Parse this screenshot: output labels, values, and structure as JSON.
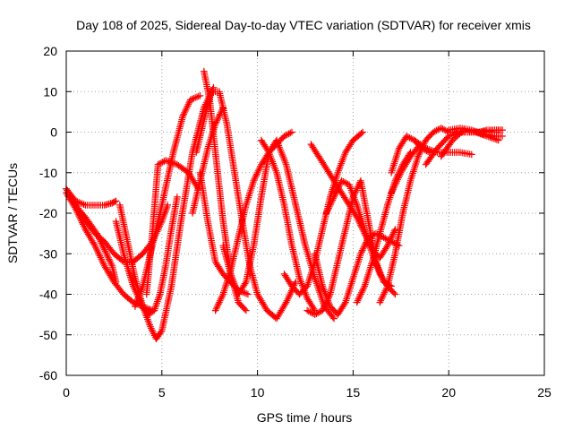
{
  "chart_data": {
    "type": "scatter",
    "title": "Day 108 of 2025, Sidereal Day-to-day VTEC variation (SDTVAR) for receiver xmis",
    "xlabel": "GPS time / hours",
    "ylabel": "SDTVAR / TECUs",
    "xlim": [
      0,
      25
    ],
    "ylim": [
      -60,
      20
    ],
    "xticks": [
      0,
      5,
      10,
      15,
      20,
      25
    ],
    "yticks": [
      -60,
      -50,
      -40,
      -30,
      -20,
      -10,
      0,
      10,
      20
    ],
    "grid": true,
    "marker": "plus",
    "color": "#ff0000",
    "series": [
      {
        "x": [
          0.0,
          0.5,
          1.0,
          1.5,
          2.0,
          2.4,
          2.6
        ],
        "y": [
          -14,
          -17,
          -18,
          -18,
          -18,
          -17.5,
          -17
        ]
      },
      {
        "x": [
          0.0,
          0.5,
          1.0,
          1.5,
          2.0,
          2.5,
          3.0,
          3.5,
          4.0,
          4.5,
          5.0,
          5.3
        ],
        "y": [
          -14,
          -18,
          -22,
          -25,
          -27,
          -30,
          -32,
          -32,
          -30,
          -27,
          -22,
          -18
        ]
      },
      {
        "x": [
          0.0,
          0.5,
          1.0,
          1.5,
          2.0,
          2.5,
          3.0,
          3.5,
          4.0,
          4.5
        ],
        "y": [
          -15,
          -19,
          -24,
          -28,
          -33,
          -37,
          -40,
          -42,
          -43,
          -44
        ]
      },
      {
        "x": [
          0.3,
          1.0,
          1.6,
          2.0,
          2.4,
          2.6
        ],
        "y": [
          -17,
          -21,
          -25,
          -29,
          -33,
          -37
        ]
      },
      {
        "x": [
          2.8,
          3.2,
          3.6,
          4.0,
          4.4,
          4.7,
          5.0,
          5.5,
          6.0,
          6.6,
          7.2,
          7.7
        ],
        "y": [
          -18,
          -27,
          -36,
          -43,
          -48,
          -51,
          -49,
          -38,
          -22,
          -5,
          6,
          11
        ]
      },
      {
        "x": [
          2.6,
          3.0,
          3.5,
          4.0,
          4.3,
          4.6,
          4.9,
          5.2,
          5.5,
          5.8
        ],
        "y": [
          -22,
          -30,
          -38,
          -43,
          -45,
          -44,
          -40,
          -33,
          -24,
          -16
        ]
      },
      {
        "x": [
          3.6,
          4.0,
          4.4,
          5.0,
          5.6,
          6.1,
          6.5,
          7.0
        ],
        "y": [
          -43,
          -38,
          -30,
          -18,
          -5,
          4,
          8,
          9
        ]
      },
      {
        "x": [
          4.2,
          4.5,
          4.8,
          5.2,
          5.8,
          6.4,
          6.9
        ],
        "y": [
          -40,
          -25,
          -8,
          -7,
          -8,
          -10,
          -14
        ]
      },
      {
        "x": [
          6.6,
          7.0,
          7.4,
          7.8,
          8.2
        ],
        "y": [
          -20,
          -12,
          -4,
          2,
          6
        ]
      },
      {
        "x": [
          6.8,
          7.3,
          7.6,
          8.0,
          8.4,
          8.8,
          9.2,
          9.6,
          10.0,
          10.5,
          11.0,
          11.5,
          12.0
        ],
        "y": [
          -5,
          5,
          10,
          10,
          2,
          -10,
          -22,
          -33,
          -40,
          -44,
          -46,
          -42,
          -37
        ]
      },
      {
        "x": [
          7.2,
          7.5,
          7.8,
          8.2,
          8.6,
          9.0,
          9.4
        ],
        "y": [
          15,
          8,
          -5,
          -22,
          -35,
          -42,
          -44
        ]
      },
      {
        "x": [
          7.0,
          7.4,
          7.8,
          8.2,
          8.6,
          9.0,
          9.5
        ],
        "y": [
          -10,
          -22,
          -32,
          -35,
          -37,
          -39,
          -40
        ]
      },
      {
        "x": [
          7.8,
          8.2,
          8.6,
          9.0,
          9.4,
          9.8,
          10.2,
          10.6,
          11.0,
          11.4,
          11.8
        ],
        "y": [
          -44,
          -40,
          -34,
          -26,
          -18,
          -12,
          -8,
          -5,
          -3,
          -1,
          0
        ]
      },
      {
        "x": [
          8.2,
          8.6,
          9.0,
          9.4,
          9.8,
          10.2,
          10.6,
          11.0,
          11.5,
          12.0,
          12.5,
          13.0,
          13.5,
          14.0
        ],
        "y": [
          -28,
          -35,
          -40,
          -37,
          -28,
          -16,
          -5,
          -2,
          -8,
          -18,
          -28,
          -36,
          -43,
          -46
        ]
      },
      {
        "x": [
          10.2,
          10.6,
          11.0,
          11.4,
          11.8,
          12.2,
          12.6,
          13.0
        ],
        "y": [
          -2,
          -5,
          -10,
          -18,
          -28,
          -36,
          -41,
          -44
        ]
      },
      {
        "x": [
          11.4,
          11.8,
          12.2,
          12.6,
          13.0,
          13.4,
          13.8,
          14.2,
          14.6,
          15.0,
          15.5
        ],
        "y": [
          -35,
          -38,
          -40,
          -38,
          -32,
          -24,
          -16,
          -10,
          -5,
          -2,
          0
        ]
      },
      {
        "x": [
          12.8,
          13.2,
          13.6,
          14.0,
          14.4,
          14.8,
          15.2,
          15.6,
          16.0,
          16.4,
          16.8,
          17.2
        ],
        "y": [
          -3,
          -6,
          -9,
          -12,
          -15,
          -18,
          -21,
          -25,
          -29,
          -31,
          -28,
          -24
        ]
      },
      {
        "x": [
          13.0,
          13.4,
          13.8,
          14.2,
          14.6,
          15.0,
          15.4,
          15.8,
          16.2,
          16.6,
          17.0,
          17.4
        ],
        "y": [
          -30,
          -38,
          -43,
          -45,
          -42,
          -36,
          -30,
          -26,
          -25,
          -26,
          -27,
          -28
        ]
      },
      {
        "x": [
          12.6,
          13.0,
          13.4,
          13.8,
          14.2,
          14.6,
          15.0,
          15.4,
          15.8,
          16.2,
          16.6,
          17.0
        ],
        "y": [
          -44,
          -45,
          -44,
          -40,
          -32,
          -24,
          -16,
          -12,
          -22,
          -32,
          -37,
          -38
        ]
      },
      {
        "x": [
          13.6,
          14.0,
          14.4,
          14.8,
          15.2,
          15.6,
          16.0,
          16.4,
          16.8,
          17.2
        ],
        "y": [
          -20,
          -16,
          -12,
          -13,
          -18,
          -24,
          -30,
          -35,
          -38,
          -40
        ]
      },
      {
        "x": [
          15.2,
          15.6,
          16.0,
          16.4,
          16.8,
          17.2,
          17.6,
          18.0
        ],
        "y": [
          -42,
          -38,
          -32,
          -25,
          -18,
          -12,
          -8,
          -5
        ]
      },
      {
        "x": [
          16.4,
          16.8,
          17.2,
          17.6,
          18.0,
          18.4,
          18.8,
          19.2,
          19.6,
          20.0,
          20.5,
          21.0,
          21.5,
          22.0,
          22.5
        ],
        "y": [
          -42,
          -38,
          -30,
          -20,
          -12,
          -6,
          -2,
          0,
          1,
          0,
          0,
          0,
          0,
          0,
          0
        ]
      },
      {
        "x": [
          17.0,
          17.4,
          17.8,
          18.2,
          18.6,
          19.0
        ],
        "y": [
          -10,
          -4,
          -1,
          -2,
          -4,
          -5
        ]
      },
      {
        "x": [
          17.0,
          17.5,
          18.0,
          18.5
        ],
        "y": [
          -15,
          -10,
          -6,
          -3
        ]
      },
      {
        "x": [
          18.2,
          18.8,
          19.4,
          20.0,
          20.6,
          21.2
        ],
        "y": [
          -2,
          -4,
          -5,
          -5,
          -5,
          -5.5
        ]
      },
      {
        "x": [
          18.8,
          19.4,
          20.0,
          20.6,
          21.2,
          21.8,
          22.4,
          22.8
        ],
        "y": [
          -8,
          -4,
          -1,
          0,
          0,
          0,
          0.5,
          0.5
        ]
      },
      {
        "x": [
          19.6,
          20.2,
          20.8,
          21.4,
          22.0,
          22.6
        ],
        "y": [
          -6,
          -2,
          0.5,
          0,
          -1,
          -2
        ]
      },
      {
        "x": [
          20.0,
          20.6,
          21.2,
          21.8,
          22.4,
          22.8
        ],
        "y": [
          0.5,
          1,
          0.5,
          -0.5,
          -1,
          -1
        ]
      },
      {
        "x": [
          21.6,
          22.0,
          22.4,
          22.8
        ],
        "y": [
          0,
          0.5,
          0.5,
          0.5
        ]
      }
    ]
  }
}
